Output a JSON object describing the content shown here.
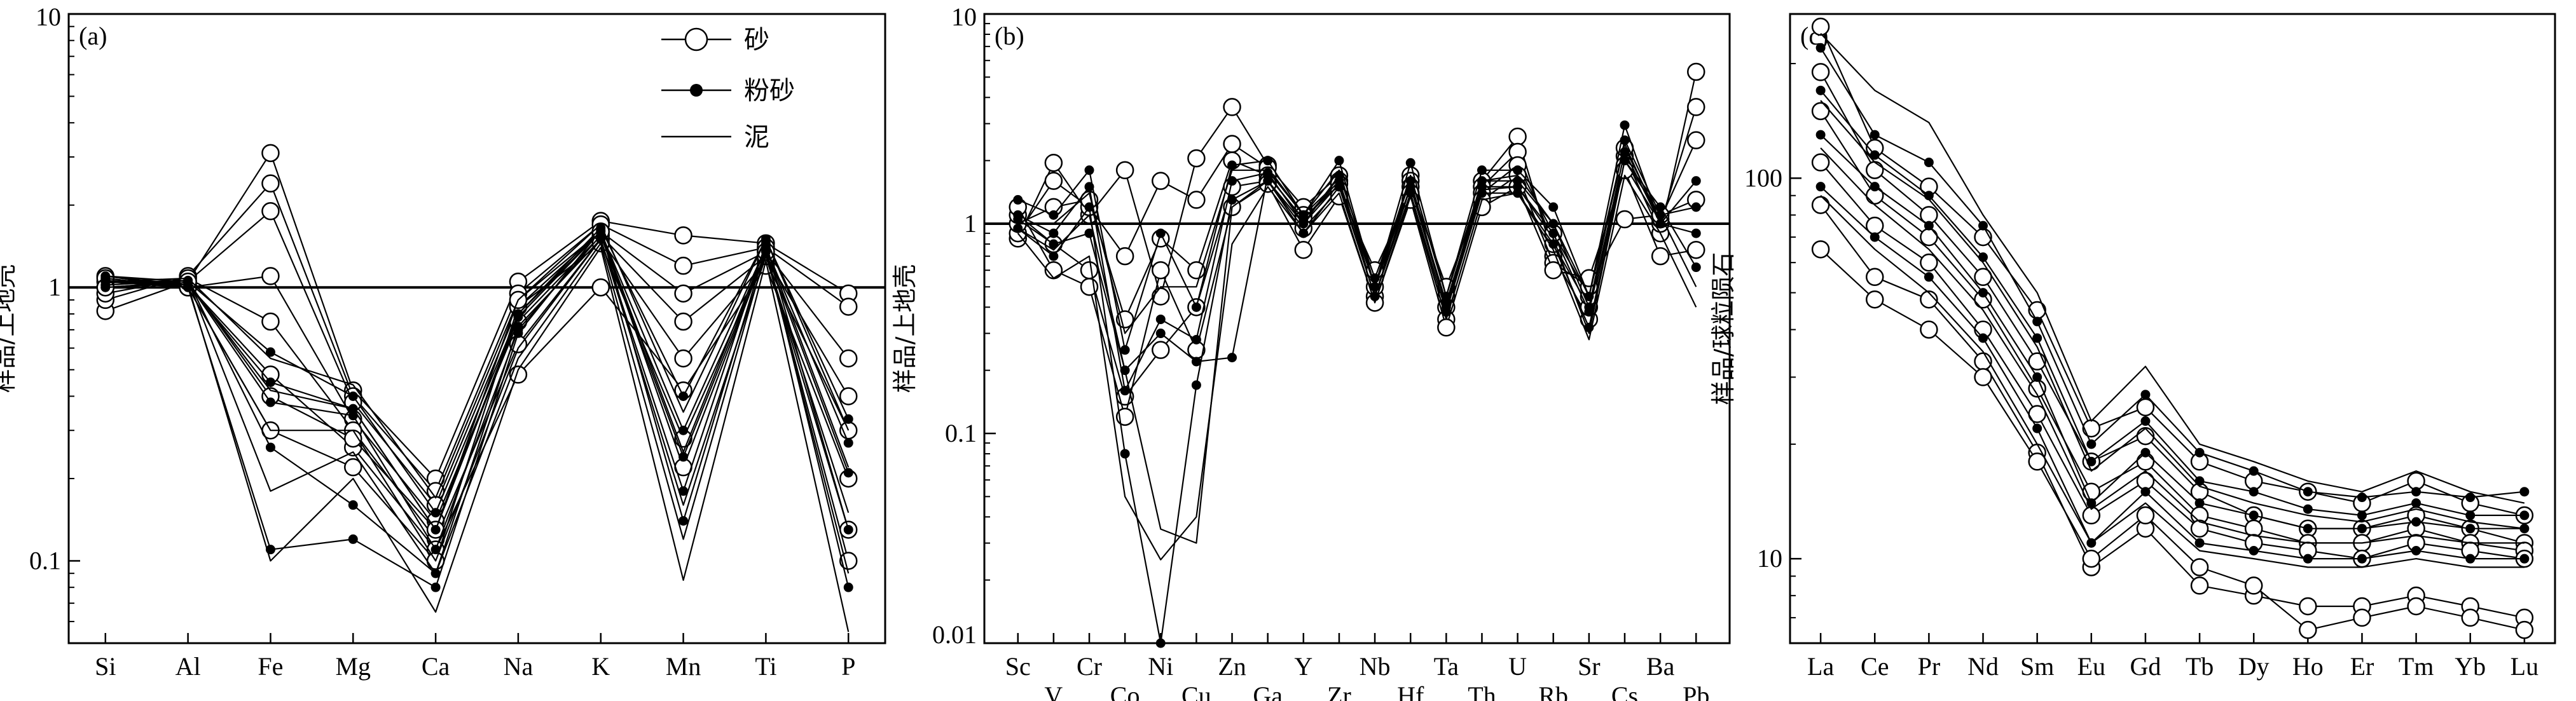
{
  "figure": {
    "legend": {
      "entries": [
        {
          "label": "砂",
          "marker": "open-circle"
        },
        {
          "label": "粉砂",
          "marker": "filled-circle"
        },
        {
          "label": "泥",
          "marker": "line"
        }
      ],
      "placement": "top-right of panel a"
    },
    "colors": {
      "ink": "#000000",
      "background": "#ffffff"
    }
  },
  "chart_data": [
    {
      "type": "line",
      "panel_label": "(a)",
      "ylabel": "样品/上地壳",
      "yscale": "log",
      "ylim": [
        0.05,
        10
      ],
      "yticks": [
        {
          "value": 0.1,
          "label": "0.1"
        },
        {
          "value": 1,
          "label": "1"
        },
        {
          "value": 10,
          "label": "10"
        }
      ],
      "reference_line": 1,
      "categories": [
        "Si",
        "Al",
        "Fe",
        "Mg",
        "Ca",
        "Na",
        "K",
        "Mn",
        "Ti",
        "P"
      ],
      "category_label_rows": [
        0,
        0,
        0,
        0,
        0,
        0,
        0,
        0,
        0,
        0
      ],
      "series": [
        {
          "group": "砂",
          "values": [
            0.82,
            1.05,
            3.1,
            0.42,
            0.2,
            1.05,
            1.75,
            1.55,
            1.45,
            0.95
          ]
        },
        {
          "group": "砂",
          "values": [
            0.9,
            1.1,
            2.4,
            0.4,
            0.18,
            0.95,
            1.7,
            1.2,
            1.4,
            0.85
          ]
        },
        {
          "group": "砂",
          "values": [
            1.0,
            1.05,
            1.9,
            0.38,
            0.16,
            0.85,
            1.6,
            0.95,
            1.35,
            0.55
          ]
        },
        {
          "group": "砂",
          "values": [
            1.05,
            1.0,
            1.1,
            0.33,
            0.14,
            0.75,
            1.55,
            0.75,
            1.3,
            0.4
          ]
        },
        {
          "group": "砂",
          "values": [
            0.95,
            1.08,
            0.75,
            0.3,
            0.12,
            0.62,
            1.5,
            0.55,
            1.25,
            0.3
          ]
        },
        {
          "group": "砂",
          "values": [
            1.1,
            1.02,
            0.48,
            0.26,
            0.11,
            0.48,
            1.0,
            0.42,
            1.2,
            0.2
          ]
        },
        {
          "group": "砂",
          "values": [
            1.08,
            1.0,
            0.3,
            0.22,
            0.1,
            0.85,
            1.45,
            0.28,
            1.3,
            0.13
          ]
        },
        {
          "group": "砂",
          "values": [
            1.0,
            1.05,
            0.4,
            0.28,
            0.13,
            0.9,
            1.6,
            0.22,
            1.35,
            0.1
          ]
        },
        {
          "group": "粉砂",
          "values": [
            1.1,
            1.05,
            0.58,
            0.4,
            0.15,
            0.8,
            1.65,
            0.4,
            1.5,
            0.33
          ]
        },
        {
          "group": "粉砂",
          "values": [
            1.05,
            1.02,
            0.45,
            0.36,
            0.13,
            0.78,
            1.6,
            0.3,
            1.4,
            0.27
          ]
        },
        {
          "group": "粉砂",
          "values": [
            1.0,
            1.04,
            0.38,
            0.34,
            0.11,
            0.7,
            1.55,
            0.24,
            1.35,
            0.21
          ]
        },
        {
          "group": "粉砂",
          "values": [
            1.02,
            1.06,
            0.26,
            0.16,
            0.09,
            0.72,
            1.5,
            0.18,
            1.45,
            0.13
          ]
        },
        {
          "group": "粉砂",
          "values": [
            1.08,
            1.0,
            0.11,
            0.12,
            0.08,
            0.68,
            1.62,
            0.14,
            1.4,
            0.08
          ]
        },
        {
          "group": "泥",
          "values": [
            1.05,
            1.08,
            0.55,
            0.44,
            0.17,
            0.9,
            1.7,
            0.35,
            1.5,
            0.3
          ]
        },
        {
          "group": "泥",
          "values": [
            1.0,
            1.04,
            0.42,
            0.36,
            0.13,
            0.8,
            1.6,
            0.25,
            1.4,
            0.22
          ]
        },
        {
          "group": "泥",
          "values": [
            1.1,
            1.0,
            0.3,
            0.3,
            0.1,
            0.6,
            1.5,
            0.16,
            1.3,
            0.15
          ]
        },
        {
          "group": "泥",
          "values": [
            1.04,
            1.06,
            0.18,
            0.25,
            0.09,
            0.55,
            1.45,
            0.12,
            1.35,
            0.09
          ]
        },
        {
          "group": "泥",
          "values": [
            1.06,
            1.02,
            0.1,
            0.2,
            0.065,
            0.5,
            1.4,
            0.085,
            1.25,
            0.055
          ]
        }
      ]
    },
    {
      "type": "line",
      "panel_label": "(b)",
      "ylabel": "样品/上地壳",
      "yscale": "log",
      "ylim": [
        0.01,
        10
      ],
      "yticks": [
        {
          "value": 0.01,
          "label": "0.01"
        },
        {
          "value": 0.1,
          "label": "0.1"
        },
        {
          "value": 1,
          "label": "1"
        },
        {
          "value": 10,
          "label": "10"
        }
      ],
      "reference_line": 1,
      "categories": [
        "Sc",
        "V",
        "Cr",
        "Co",
        "Ni",
        "Cu",
        "Zn",
        "Ga",
        "Y",
        "Zr",
        "Nb",
        "Hf",
        "Ta",
        "Th",
        "U",
        "Rb",
        "Sr",
        "Cs",
        "Ba",
        "Pb"
      ],
      "category_label_rows": [
        0,
        1,
        0,
        1,
        0,
        1,
        0,
        1,
        0,
        1,
        0,
        1,
        0,
        1,
        0,
        1,
        0,
        1,
        0,
        1
      ],
      "series": [
        {
          "group": "砂",
          "values": [
            0.85,
            1.95,
            1.1,
            1.8,
            0.45,
            2.05,
            3.6,
            1.9,
            1.2,
            1.7,
            0.45,
            1.7,
            0.45,
            1.6,
            2.6,
            0.7,
            0.35,
            2.1,
            0.9,
            5.3
          ]
        },
        {
          "group": "砂",
          "values": [
            0.9,
            1.6,
            1.2,
            0.7,
            1.6,
            1.3,
            2.4,
            1.85,
            1.1,
            1.6,
            0.5,
            1.6,
            0.4,
            1.5,
            2.2,
            0.8,
            0.4,
            1.9,
            1.0,
            3.6
          ]
        },
        {
          "group": "砂",
          "values": [
            1.0,
            1.2,
            1.3,
            0.35,
            0.85,
            0.6,
            2.0,
            1.7,
            1.05,
            1.55,
            0.55,
            1.5,
            0.5,
            1.4,
            1.9,
            0.9,
            0.45,
            2.3,
            1.05,
            2.5
          ]
        },
        {
          "group": "砂",
          "values": [
            1.1,
            0.8,
            0.6,
            0.15,
            0.25,
            0.4,
            1.5,
            1.6,
            0.95,
            1.45,
            0.6,
            1.4,
            0.35,
            1.3,
            1.7,
            0.65,
            0.5,
            1.05,
            1.1,
            1.3
          ]
        },
        {
          "group": "砂",
          "values": [
            1.2,
            0.6,
            0.5,
            0.12,
            0.6,
            0.25,
            1.2,
            1.55,
            0.75,
            1.35,
            0.42,
            1.3,
            0.32,
            1.2,
            1.5,
            0.6,
            0.55,
            1.8,
            0.7,
            0.75
          ]
        },
        {
          "group": "粉砂",
          "values": [
            1.3,
            1.1,
            1.8,
            0.25,
            0.9,
            0.4,
            1.9,
            2.0,
            1.1,
            2.0,
            0.5,
            1.95,
            0.45,
            1.8,
            1.8,
            1.2,
            0.45,
            2.95,
            1.0,
            1.6
          ]
        },
        {
          "group": "粉砂",
          "values": [
            1.1,
            0.9,
            1.5,
            0.16,
            0.35,
            0.28,
            1.6,
            1.75,
            1.0,
            1.7,
            0.55,
            1.6,
            0.4,
            1.6,
            1.6,
            1.0,
            0.4,
            2.5,
            1.1,
            1.2
          ]
        },
        {
          "group": "粉砂",
          "values": [
            0.95,
            0.7,
            1.2,
            0.08,
            0.01,
            0.17,
            1.3,
            1.6,
            0.9,
            1.5,
            0.45,
            1.4,
            0.38,
            1.4,
            1.4,
            0.8,
            0.32,
            2.0,
            1.2,
            0.62
          ]
        },
        {
          "group": "粉砂",
          "values": [
            1.05,
            0.8,
            0.9,
            0.2,
            0.3,
            0.22,
            0.23,
            1.7,
            1.05,
            1.6,
            0.5,
            1.5,
            0.42,
            1.5,
            1.5,
            0.9,
            0.38,
            2.2,
            1.0,
            0.9
          ]
        },
        {
          "group": "泥",
          "values": [
            1.0,
            1.0,
            1.4,
            0.3,
            0.5,
            0.5,
            1.8,
            1.8,
            1.1,
            1.8,
            0.5,
            1.7,
            0.45,
            1.6,
            1.7,
            1.0,
            0.45,
            2.4,
            1.0,
            1.0
          ]
        },
        {
          "group": "泥",
          "values": [
            0.95,
            0.75,
            1.1,
            0.2,
            0.035,
            0.03,
            1.2,
            1.6,
            1.0,
            1.55,
            0.45,
            1.5,
            0.4,
            1.45,
            1.5,
            0.85,
            0.3,
            2.0,
            1.1,
            0.5
          ]
        },
        {
          "group": "泥",
          "values": [
            0.9,
            0.55,
            0.7,
            0.05,
            0.025,
            0.04,
            0.8,
            1.5,
            0.9,
            1.4,
            0.42,
            1.35,
            0.35,
            1.3,
            1.4,
            0.75,
            0.28,
            1.7,
            0.9,
            0.4
          ]
        }
      ]
    },
    {
      "type": "line",
      "panel_label": "(c)",
      "ylabel": "样品/球粒陨石",
      "yscale": "log",
      "ylim": [
        6,
        270
      ],
      "yticks": [
        {
          "value": 10,
          "label": "10"
        },
        {
          "value": 100,
          "label": "100"
        }
      ],
      "categories": [
        "La",
        "Ce",
        "Pr",
        "Nd",
        "Sm",
        "Eu",
        "Gd",
        "Tb",
        "Dy",
        "Ho",
        "Er",
        "Tm",
        "Yb",
        "Lu"
      ],
      "category_label_rows": [
        0,
        0,
        0,
        0,
        0,
        0,
        0,
        0,
        0,
        0,
        0,
        0,
        0,
        0
      ],
      "series": [
        {
          "group": "砂",
          "values": [
            250,
            120,
            95,
            70,
            45,
            22,
            25,
            18,
            16,
            15,
            14,
            16,
            14,
            13
          ]
        },
        {
          "group": "砂",
          "values": [
            190,
            105,
            80,
            55,
            33,
            18,
            21,
            15,
            13,
            12,
            12,
            13,
            12,
            11
          ]
        },
        {
          "group": "砂",
          "values": [
            150,
            90,
            70,
            48,
            28,
            15,
            18,
            13,
            12,
            11,
            11,
            12,
            11,
            10.5
          ]
        },
        {
          "group": "砂",
          "values": [
            110,
            75,
            60,
            40,
            24,
            13,
            16,
            12,
            11,
            10.5,
            10,
            11,
            10.5,
            10
          ]
        },
        {
          "group": "砂",
          "values": [
            85,
            55,
            48,
            33,
            19,
            9.5,
            12,
            8.5,
            8,
            7.5,
            7.5,
            8,
            7.5,
            7
          ]
        },
        {
          "group": "砂",
          "values": [
            65,
            48,
            40,
            30,
            18,
            10,
            13,
            9.5,
            8.5,
            6.5,
            7,
            7.5,
            7,
            6.5
          ]
        },
        {
          "group": "粉砂",
          "values": [
            220,
            130,
            110,
            75,
            42,
            20,
            27,
            19,
            17,
            15,
            14.5,
            15,
            14.5,
            15
          ]
        },
        {
          "group": "粉砂",
          "values": [
            170,
            115,
            90,
            62,
            38,
            18,
            23,
            16,
            15,
            13.5,
            13,
            14,
            13,
            13
          ]
        },
        {
          "group": "粉砂",
          "values": [
            130,
            95,
            75,
            50,
            30,
            14,
            19,
            14,
            13,
            12,
            12,
            12.5,
            12,
            12
          ]
        },
        {
          "group": "粉砂",
          "values": [
            95,
            70,
            55,
            38,
            22,
            11,
            15,
            11,
            10.5,
            10,
            10,
            10.5,
            10,
            10
          ]
        },
        {
          "group": "泥",
          "values": [
            240,
            170,
            140,
            80,
            50,
            23,
            32,
            20,
            18,
            16,
            15,
            17,
            15,
            14
          ]
        },
        {
          "group": "泥",
          "values": [
            160,
            110,
            88,
            60,
            36,
            17,
            22,
            15.5,
            14,
            13,
            12.5,
            13.5,
            12.5,
            12
          ]
        },
        {
          "group": "泥",
          "values": [
            120,
            85,
            65,
            45,
            27,
            13.5,
            17,
            12.5,
            11.5,
            11,
            11,
            11.5,
            11,
            11
          ]
        },
        {
          "group": "泥",
          "values": [
            90,
            65,
            50,
            35,
            20,
            11,
            14,
            10.5,
            10,
            9.5,
            9.5,
            10,
            9.5,
            9.5
          ]
        }
      ]
    }
  ]
}
